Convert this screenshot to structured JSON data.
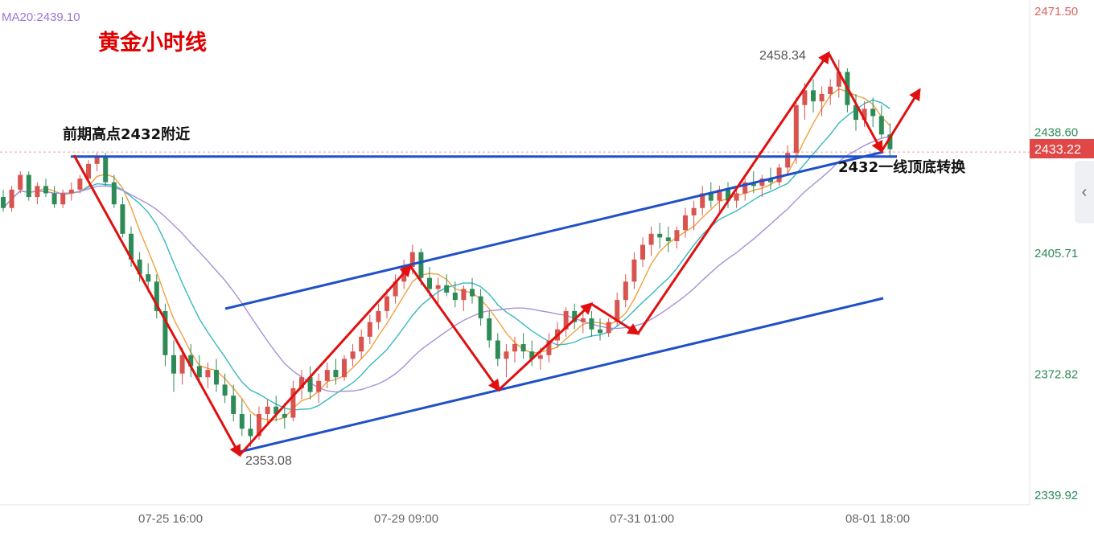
{
  "indicator": {
    "label": "MA20:2439.10"
  },
  "annotations": {
    "title": "黄金小时线",
    "resistance_label": "前期高点2432附近",
    "flip_label": "2432一线顶底转换",
    "high_label": "2458.34",
    "low_label": "2353.08"
  },
  "current_price": "2433.22",
  "icons": {
    "collapse": "chevron-left-icon"
  },
  "colors": {
    "up": "#d9534f",
    "down": "#2e8b57",
    "red_line": "#e01010",
    "blue_line": "#2050c8",
    "ma5": "#f0a040",
    "ma10": "#38b8c0",
    "ma20": "#a890d8"
  },
  "chart_data": {
    "type": "candlestick",
    "y_ticks": [
      "2471.50",
      "2438.60",
      "2405.71",
      "2372.82",
      "2339.92"
    ],
    "x_ticks": [
      "07-25 16:00",
      "07-29 09:00",
      "07-31 01:00",
      "08-01 18:00"
    ],
    "ylim": [
      2339.92,
      2471.5
    ],
    "candles": [
      [
        2421,
        2423,
        2417,
        2418
      ],
      [
        2418,
        2424,
        2417,
        2423
      ],
      [
        2423,
        2428,
        2422,
        2427
      ],
      [
        2427,
        2428,
        2420,
        2421
      ],
      [
        2421,
        2425,
        2419,
        2424
      ],
      [
        2424,
        2426,
        2421,
        2422
      ],
      [
        2422,
        2424,
        2418,
        2419
      ],
      [
        2419,
        2423,
        2418,
        2422
      ],
      [
        2422,
        2425,
        2420,
        2423
      ],
      [
        2423,
        2427,
        2422,
        2426
      ],
      [
        2426,
        2431,
        2425,
        2430
      ],
      [
        2430,
        2433,
        2428,
        2432
      ],
      [
        2432,
        2433,
        2424,
        2425
      ],
      [
        2425,
        2427,
        2418,
        2419
      ],
      [
        2419,
        2421,
        2410,
        2411
      ],
      [
        2411,
        2413,
        2402,
        2404
      ],
      [
        2404,
        2406,
        2398,
        2400
      ],
      [
        2400,
        2403,
        2395,
        2398
      ],
      [
        2398,
        2400,
        2388,
        2390
      ],
      [
        2390,
        2392,
        2375,
        2378
      ],
      [
        2378,
        2382,
        2368,
        2373
      ],
      [
        2373,
        2380,
        2370,
        2378
      ],
      [
        2378,
        2381,
        2372,
        2375
      ],
      [
        2375,
        2378,
        2370,
        2372
      ],
      [
        2372,
        2376,
        2369,
        2374
      ],
      [
        2374,
        2377,
        2368,
        2370
      ],
      [
        2370,
        2373,
        2365,
        2367
      ],
      [
        2367,
        2370,
        2360,
        2362
      ],
      [
        2362,
        2366,
        2356,
        2358
      ],
      [
        2358,
        2362,
        2353.08,
        2356
      ],
      [
        2356,
        2364,
        2355,
        2362
      ],
      [
        2362,
        2366,
        2359,
        2364
      ],
      [
        2364,
        2367,
        2360,
        2362
      ],
      [
        2362,
        2365,
        2358,
        2361
      ],
      [
        2361,
        2371,
        2360,
        2369
      ],
      [
        2369,
        2374,
        2366,
        2372
      ],
      [
        2372,
        2375,
        2366,
        2368
      ],
      [
        2368,
        2373,
        2365,
        2371
      ],
      [
        2371,
        2376,
        2369,
        2374
      ],
      [
        2374,
        2377,
        2370,
        2372
      ],
      [
        2372,
        2378,
        2371,
        2377
      ],
      [
        2377,
        2381,
        2375,
        2379
      ],
      [
        2379,
        2385,
        2377,
        2383
      ],
      [
        2383,
        2389,
        2381,
        2387
      ],
      [
        2387,
        2392,
        2385,
        2390
      ],
      [
        2390,
        2396,
        2388,
        2394
      ],
      [
        2394,
        2400,
        2392,
        2398
      ],
      [
        2398,
        2404,
        2396,
        2402
      ],
      [
        2402,
        2408,
        2400,
        2406
      ],
      [
        2406,
        2407,
        2397,
        2399
      ],
      [
        2399,
        2402,
        2394,
        2396
      ],
      [
        2396,
        2399,
        2392,
        2397
      ],
      [
        2397,
        2400,
        2394,
        2395
      ],
      [
        2395,
        2398,
        2391,
        2393
      ],
      [
        2393,
        2397,
        2390,
        2396
      ],
      [
        2396,
        2399,
        2392,
        2394
      ],
      [
        2394,
        2396,
        2386,
        2388
      ],
      [
        2388,
        2390,
        2380,
        2382
      ],
      [
        2382,
        2384,
        2375,
        2377
      ],
      [
        2377,
        2381,
        2372,
        2379
      ],
      [
        2379,
        2383,
        2376,
        2381
      ],
      [
        2381,
        2384,
        2377,
        2379
      ],
      [
        2379,
        2382,
        2375,
        2377
      ],
      [
        2377,
        2380,
        2374,
        2378
      ],
      [
        2378,
        2384,
        2376,
        2382
      ],
      [
        2382,
        2387,
        2380,
        2385
      ],
      [
        2385,
        2391,
        2383,
        2390
      ],
      [
        2390,
        2392,
        2385,
        2387
      ],
      [
        2387,
        2390,
        2384,
        2388
      ],
      [
        2388,
        2390,
        2383,
        2385
      ],
      [
        2385,
        2388,
        2382,
        2384
      ],
      [
        2384,
        2388,
        2383,
        2387
      ],
      [
        2387,
        2395,
        2386,
        2393
      ],
      [
        2393,
        2400,
        2391,
        2398
      ],
      [
        2398,
        2406,
        2396,
        2404
      ],
      [
        2404,
        2410,
        2402,
        2408
      ],
      [
        2408,
        2413,
        2405,
        2411
      ],
      [
        2411,
        2414,
        2407,
        2410
      ],
      [
        2410,
        2413,
        2406,
        2409
      ],
      [
        2409,
        2413,
        2407,
        2412
      ],
      [
        2412,
        2418,
        2410,
        2416
      ],
      [
        2416,
        2420,
        2412,
        2418
      ],
      [
        2418,
        2424,
        2416,
        2422
      ],
      [
        2422,
        2425,
        2418,
        2420
      ],
      [
        2420,
        2424,
        2417,
        2423
      ],
      [
        2423,
        2425,
        2418,
        2420
      ],
      [
        2420,
        2424,
        2418,
        2422
      ],
      [
        2422,
        2426,
        2420,
        2425
      ],
      [
        2425,
        2428,
        2422,
        2424
      ],
      [
        2424,
        2427,
        2421,
        2426
      ],
      [
        2426,
        2429,
        2423,
        2425
      ],
      [
        2425,
        2430,
        2424,
        2429
      ],
      [
        2429,
        2435,
        2427,
        2433
      ],
      [
        2433,
        2448,
        2430,
        2446
      ],
      [
        2446,
        2452,
        2442,
        2450
      ],
      [
        2450,
        2453,
        2444,
        2447
      ],
      [
        2447,
        2451,
        2443,
        2449
      ],
      [
        2449,
        2453,
        2446,
        2451
      ],
      [
        2451,
        2458.34,
        2448,
        2455
      ],
      [
        2455,
        2456,
        2444,
        2446
      ],
      [
        2446,
        2449,
        2439,
        2442
      ],
      [
        2442,
        2447,
        2440,
        2445
      ],
      [
        2445,
        2448,
        2440,
        2443
      ],
      [
        2443,
        2446,
        2437,
        2438
      ],
      [
        2438,
        2441,
        2432,
        2434
      ]
    ],
    "ma_labels": [
      "MA20"
    ],
    "channel": {
      "resistance": 2432,
      "high": 2458.34,
      "low": 2353.08
    }
  }
}
